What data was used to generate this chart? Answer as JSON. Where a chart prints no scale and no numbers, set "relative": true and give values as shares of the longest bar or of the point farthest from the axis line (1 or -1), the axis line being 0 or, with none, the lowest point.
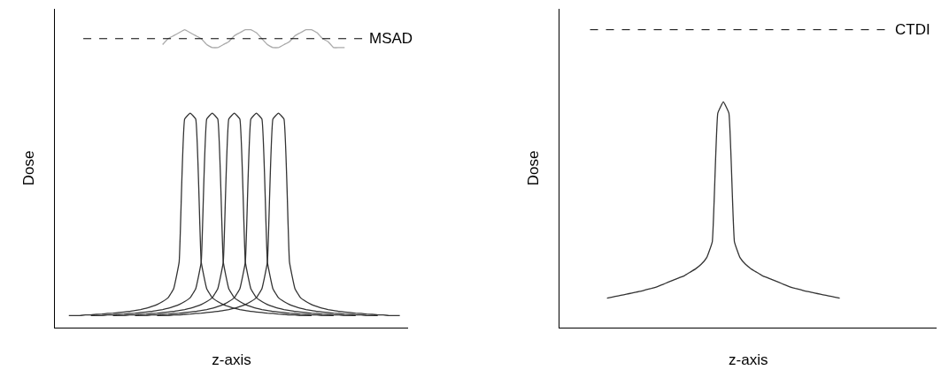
{
  "chart_data": [
    {
      "type": "line",
      "relative": true,
      "xlabel": "z-axis",
      "ylabel": "Dose",
      "tick_labels": false,
      "categories": [
        null,
        null,
        null,
        null,
        null,
        null,
        null,
        null,
        null,
        null,
        null,
        null,
        null,
        null,
        null,
        null,
        null,
        null,
        null,
        null,
        null,
        null,
        null,
        null,
        null,
        null,
        null,
        null,
        null,
        null,
        null,
        null,
        null,
        null,
        null,
        null,
        null,
        null,
        null,
        null,
        null,
        null,
        null,
        null,
        null,
        null,
        null,
        null,
        null,
        null,
        null,
        null,
        null,
        null,
        null,
        null,
        null,
        null,
        null,
        null,
        null,
        null,
        null,
        null
      ],
      "ref_lines": [
        {
          "axis": "y",
          "value": 0.97,
          "label": "MSAD",
          "color": "#000000",
          "line_style": "dashed"
        }
      ],
      "series": [
        {
          "color": "#333333",
          "values": [
            null,
            null,
            0.04,
            0.04,
            0.04,
            0.042,
            0.042,
            0.044,
            0.045,
            0.047,
            0.048,
            0.05,
            0.052,
            0.054,
            0.057,
            0.06,
            0.064,
            0.07,
            0.077,
            0.087,
            0.1,
            0.13,
            0.22,
            0.7,
            0.72,
            0.7,
            0.22,
            0.13,
            0.1,
            0.087,
            0.077,
            0.07,
            0.064,
            0.06,
            0.057,
            0.054,
            0.052,
            0.05,
            0.048,
            0.047,
            0.045,
            0.044,
            0.042,
            0.042,
            0.04,
            0.04,
            0.04,
            null,
            null,
            null,
            null,
            null,
            null,
            null,
            null,
            null,
            null,
            null,
            null,
            null,
            null,
            null,
            null,
            null
          ]
        },
        {
          "color": "#333333",
          "values": [
            null,
            null,
            null,
            null,
            null,
            null,
            0.04,
            0.04,
            0.04,
            0.042,
            0.042,
            0.044,
            0.045,
            0.047,
            0.048,
            0.05,
            0.052,
            0.054,
            0.057,
            0.06,
            0.064,
            0.07,
            0.077,
            0.087,
            0.1,
            0.13,
            0.22,
            0.7,
            0.72,
            0.7,
            0.22,
            0.13,
            0.1,
            0.087,
            0.077,
            0.07,
            0.064,
            0.06,
            0.057,
            0.054,
            0.052,
            0.05,
            0.048,
            0.047,
            0.045,
            0.044,
            0.042,
            0.042,
            0.04,
            0.04,
            0.04,
            null,
            null,
            null,
            null,
            null,
            null,
            null,
            null,
            null,
            null,
            null,
            null,
            null
          ]
        },
        {
          "color": "#333333",
          "values": [
            null,
            null,
            null,
            null,
            null,
            null,
            null,
            null,
            null,
            null,
            0.04,
            0.04,
            0.04,
            0.042,
            0.042,
            0.044,
            0.045,
            0.047,
            0.048,
            0.05,
            0.052,
            0.054,
            0.057,
            0.06,
            0.064,
            0.07,
            0.077,
            0.087,
            0.1,
            0.13,
            0.22,
            0.7,
            0.72,
            0.7,
            0.22,
            0.13,
            0.1,
            0.087,
            0.077,
            0.07,
            0.064,
            0.06,
            0.057,
            0.054,
            0.052,
            0.05,
            0.048,
            0.047,
            0.045,
            0.044,
            0.042,
            0.042,
            0.04,
            0.04,
            0.04,
            null,
            null,
            null,
            null,
            null,
            null,
            null,
            null,
            null
          ]
        },
        {
          "color": "#333333",
          "values": [
            null,
            null,
            null,
            null,
            null,
            null,
            null,
            null,
            null,
            null,
            null,
            null,
            null,
            null,
            0.04,
            0.04,
            0.04,
            0.042,
            0.042,
            0.044,
            0.045,
            0.047,
            0.048,
            0.05,
            0.052,
            0.054,
            0.057,
            0.06,
            0.064,
            0.07,
            0.077,
            0.087,
            0.1,
            0.13,
            0.22,
            0.7,
            0.72,
            0.7,
            0.22,
            0.13,
            0.1,
            0.087,
            0.077,
            0.07,
            0.064,
            0.06,
            0.057,
            0.054,
            0.052,
            0.05,
            0.048,
            0.047,
            0.045,
            0.044,
            0.042,
            0.042,
            0.04,
            0.04,
            0.04,
            null,
            null,
            null,
            null,
            null
          ]
        },
        {
          "color": "#333333",
          "values": [
            null,
            null,
            null,
            null,
            null,
            null,
            null,
            null,
            null,
            null,
            null,
            null,
            null,
            null,
            null,
            null,
            null,
            null,
            0.04,
            0.04,
            0.04,
            0.042,
            0.042,
            0.044,
            0.045,
            0.047,
            0.048,
            0.05,
            0.052,
            0.054,
            0.057,
            0.06,
            0.064,
            0.07,
            0.077,
            0.087,
            0.1,
            0.13,
            0.22,
            0.7,
            0.72,
            0.7,
            0.22,
            0.13,
            0.1,
            0.087,
            0.077,
            0.07,
            0.064,
            0.06,
            0.057,
            0.054,
            0.052,
            0.05,
            0.048,
            0.047,
            0.045,
            0.044,
            0.042,
            0.042,
            0.04,
            0.04,
            0.04,
            null
          ]
        },
        {
          "color": "#aaaaaa",
          "values": [
            null,
            null,
            null,
            null,
            null,
            null,
            null,
            null,
            null,
            null,
            null,
            null,
            null,
            null,
            null,
            null,
            null,
            null,
            null,
            0.95,
            0.97,
            0.98,
            0.99,
            1.0,
            0.99,
            0.98,
            0.97,
            0.95,
            0.94,
            0.94,
            0.95,
            0.96,
            0.98,
            0.99,
            1.0,
            1.0,
            0.99,
            0.97,
            0.95,
            0.94,
            0.94,
            0.95,
            0.96,
            0.98,
            0.99,
            1.0,
            1.0,
            0.99,
            0.97,
            0.96,
            0.94,
            0.94,
            0.94,
            null,
            null,
            null,
            null,
            null,
            null,
            null,
            null,
            null,
            null,
            null
          ]
        }
      ]
    },
    {
      "type": "line",
      "relative": true,
      "xlabel": "z-axis",
      "ylabel": "Dose",
      "tick_labels": false,
      "categories": [
        null,
        null,
        null,
        null,
        null,
        null,
        null,
        null,
        null,
        null,
        null,
        null,
        null,
        null,
        null,
        null,
        null,
        null,
        null,
        null,
        null,
        null,
        null,
        null,
        null,
        null,
        null,
        null,
        null,
        null,
        null,
        null,
        null,
        null,
        null,
        null,
        null,
        null,
        null,
        null,
        null,
        null,
        null,
        null,
        null,
        null,
        null,
        null,
        null,
        null,
        null,
        null,
        null,
        null,
        null,
        null,
        null,
        null,
        null,
        null,
        null,
        null,
        null,
        null,
        null,
        null,
        null,
        null
      ],
      "ref_lines": [
        {
          "axis": "y",
          "value": 1.32,
          "label": "CTDI",
          "color": "#000000",
          "line_style": "dashed"
        }
      ],
      "series": [
        {
          "color": "#333333",
          "values": [
            null,
            null,
            null,
            null,
            null,
            null,
            null,
            null,
            0.13,
            0.135,
            0.14,
            0.145,
            0.15,
            0.155,
            0.16,
            0.167,
            0.173,
            0.18,
            0.19,
            0.2,
            0.21,
            0.22,
            0.23,
            0.245,
            0.26,
            0.28,
            0.31,
            0.38,
            0.95,
            1.0,
            0.95,
            0.38,
            0.31,
            0.28,
            0.26,
            0.245,
            0.23,
            0.22,
            0.21,
            0.2,
            0.19,
            0.18,
            0.173,
            0.167,
            0.16,
            0.155,
            0.15,
            0.145,
            0.14,
            0.135,
            0.13,
            null,
            null,
            null,
            null,
            null,
            null,
            null,
            null,
            null,
            null,
            null,
            null,
            null,
            null,
            null,
            null,
            null
          ]
        }
      ]
    }
  ]
}
